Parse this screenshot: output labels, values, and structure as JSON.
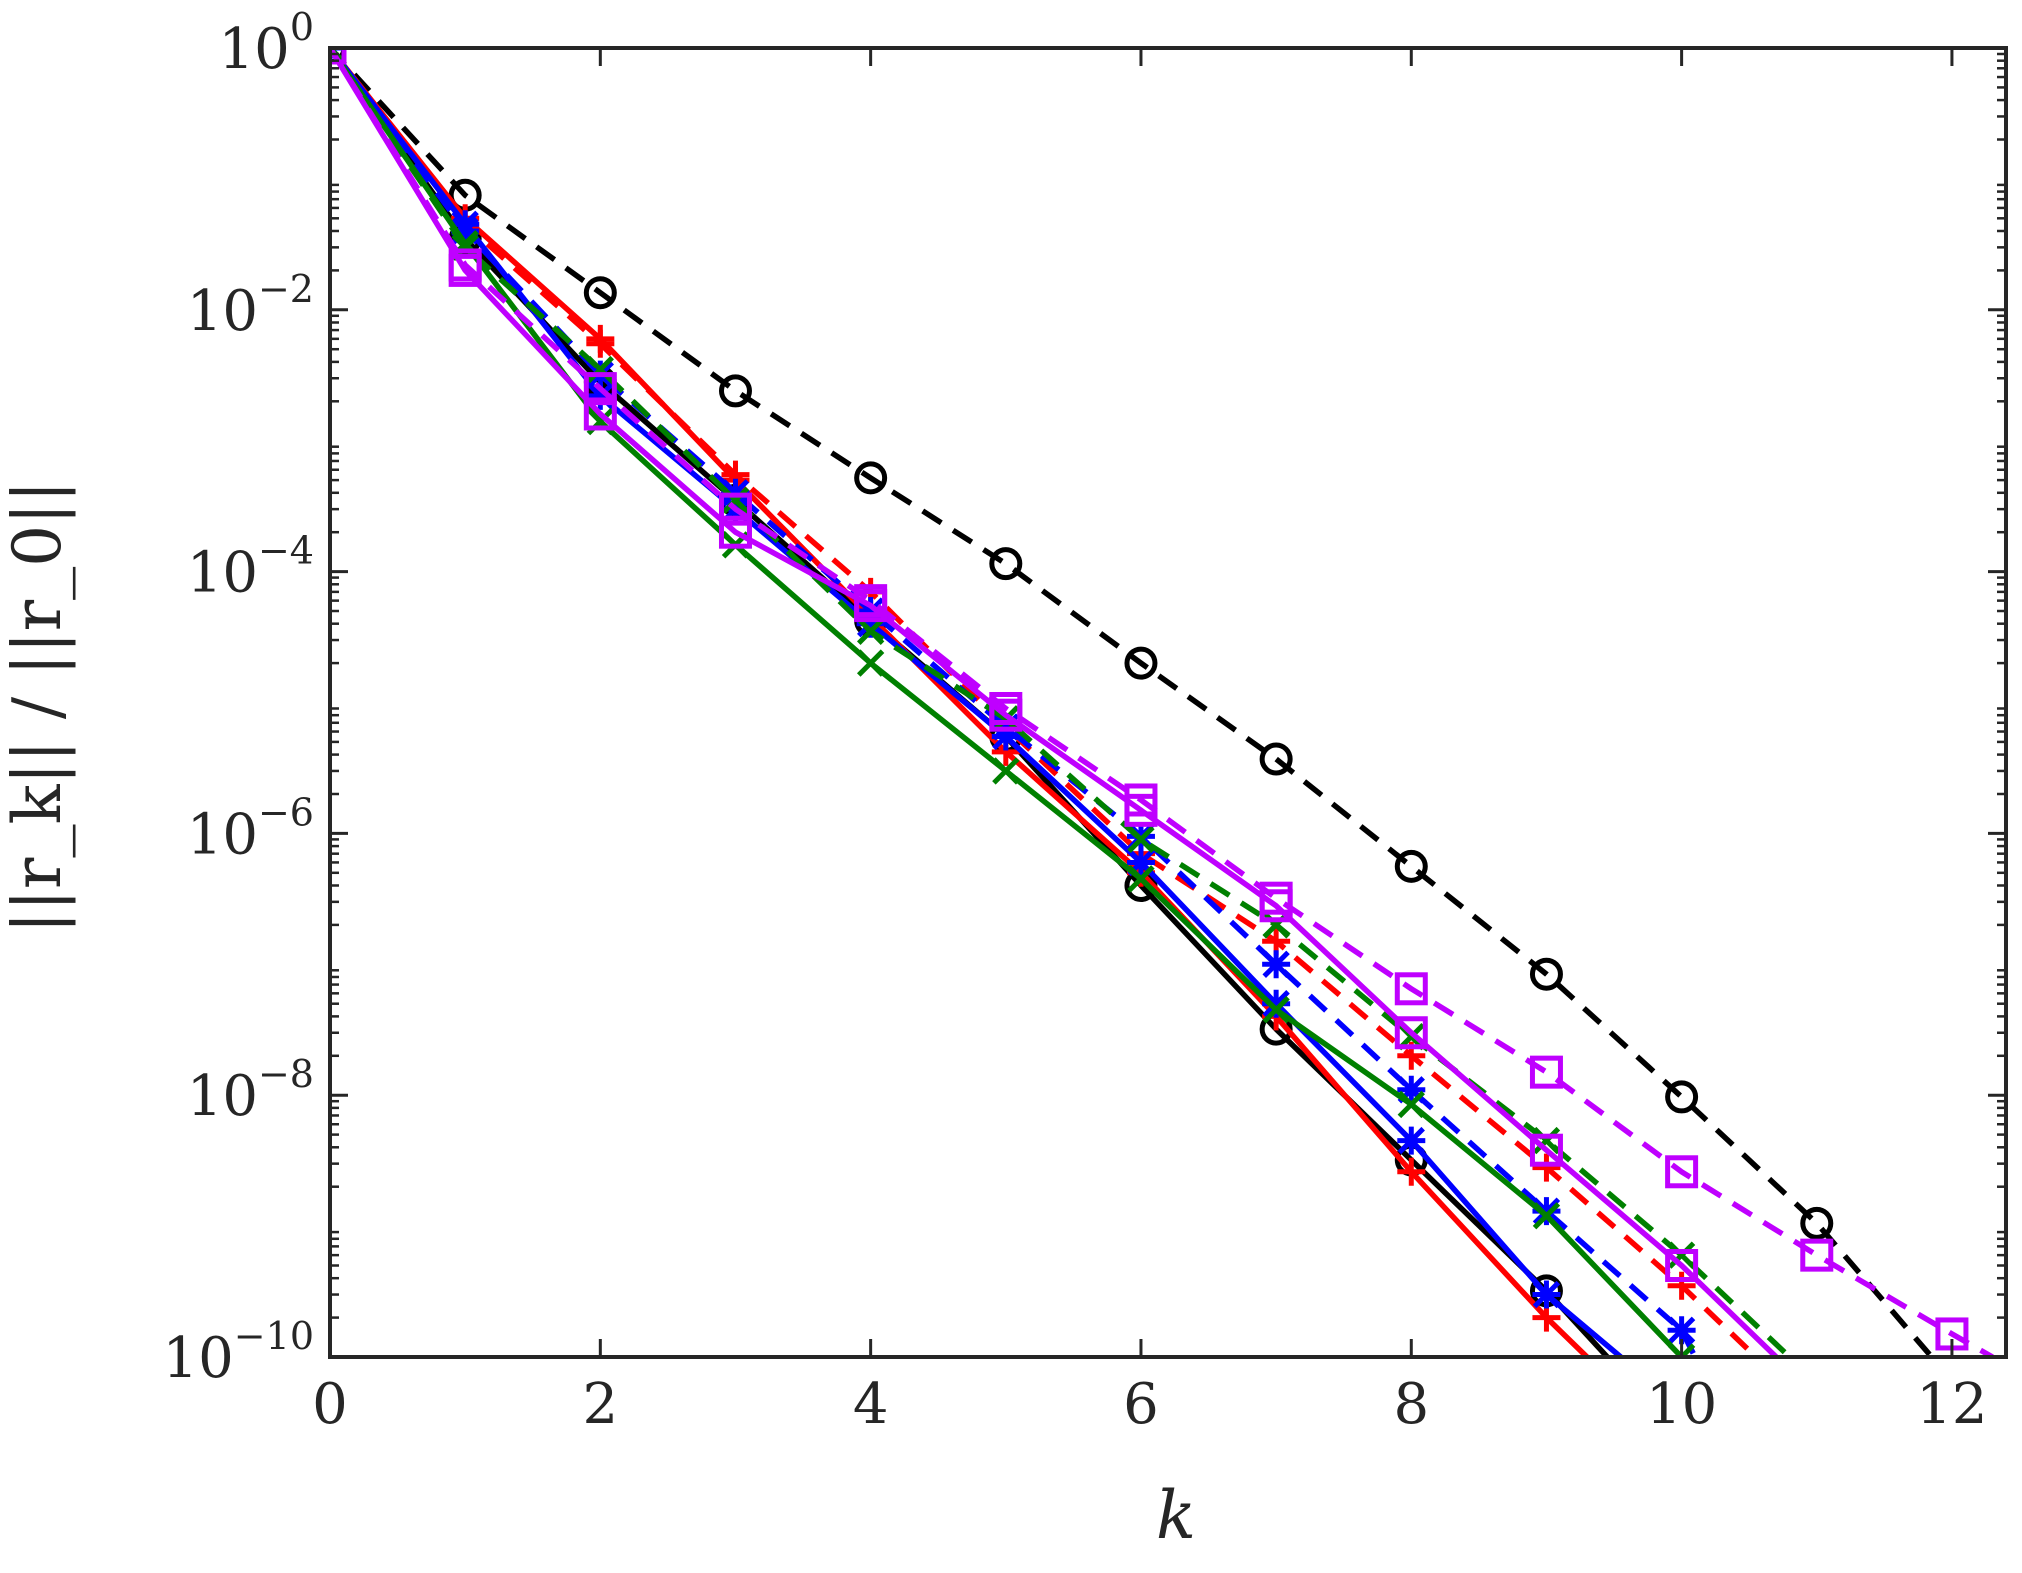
{
  "chart_data": {
    "type": "line",
    "xlabel": "k",
    "ylabel": "||r_k|| / ||r_0||",
    "yscale": "log",
    "xlim": [
      0,
      12.4
    ],
    "ylim": [
      1e-10,
      1
    ],
    "grid": false,
    "legend": "none",
    "x_ticks": [
      {
        "value": 0,
        "label": "0"
      },
      {
        "value": 2,
        "label": "2"
      },
      {
        "value": 4,
        "label": "4"
      },
      {
        "value": 6,
        "label": "6"
      },
      {
        "value": 8,
        "label": "8"
      },
      {
        "value": 10,
        "label": "10"
      },
      {
        "value": 12,
        "label": "12"
      }
    ],
    "y_ticks": [
      {
        "value": 1,
        "base": "10",
        "exponent": "0"
      },
      {
        "value": 0.01,
        "base": "10",
        "exponent": "−2"
      },
      {
        "value": 0.0001,
        "base": "10",
        "exponent": "−4"
      },
      {
        "value": 1e-06,
        "base": "10",
        "exponent": "−6"
      },
      {
        "value": 1e-08,
        "base": "10",
        "exponent": "−8"
      },
      {
        "value": 1e-10,
        "base": "10",
        "exponent": "−10"
      }
    ],
    "series": [
      {
        "color": "#000000",
        "dash": "dashed",
        "marker": "circle",
        "x": [
          0,
          1,
          2,
          3,
          4,
          5,
          6,
          7,
          8,
          9,
          10,
          11,
          11.85
        ],
        "y": [
          1,
          0.075,
          0.0135,
          0.0024,
          0.00052,
          0.000115,
          2e-05,
          3.7e-06,
          5.6e-07,
          8.4e-08,
          9.7e-09,
          1.05e-09,
          1e-10
        ]
      },
      {
        "color": "#000000",
        "dash": "solid",
        "marker": "circle",
        "x": [
          0,
          1,
          2,
          3,
          4,
          5,
          6,
          7,
          8,
          9,
          9.45
        ],
        "y": [
          1,
          0.035,
          0.0028,
          0.00035,
          4.2e-05,
          5.5e-06,
          4e-07,
          3.2e-08,
          3.2e-09,
          3.2e-10,
          1e-10
        ]
      },
      {
        "color": "#ff0000",
        "dash": "solid",
        "marker": "plus",
        "x": [
          0,
          1,
          2,
          3,
          4,
          5,
          6,
          7,
          8,
          9,
          9.3
        ],
        "y": [
          1,
          0.05,
          0.006,
          0.0005,
          4.5e-05,
          4.2e-06,
          5e-07,
          4e-08,
          2.6e-09,
          2e-10,
          1e-10
        ]
      },
      {
        "color": "#ff0000",
        "dash": "dashed",
        "marker": "plus",
        "x": [
          0,
          1,
          2,
          3,
          4,
          5,
          6,
          7,
          8,
          9,
          10,
          10.55
        ],
        "y": [
          1,
          0.045,
          0.0055,
          0.00055,
          7e-05,
          6.5e-06,
          7e-07,
          1.5e-07,
          2e-08,
          2.8e-09,
          3.5e-10,
          1e-10
        ]
      },
      {
        "color": "#0000ff",
        "dash": "solid",
        "marker": "asterisk",
        "x": [
          0,
          1,
          2,
          3,
          4,
          5,
          6,
          7,
          8,
          9,
          9.55
        ],
        "y": [
          1,
          0.045,
          0.0022,
          0.0003,
          4e-05,
          5.5e-06,
          6e-07,
          5e-08,
          4.5e-09,
          3e-10,
          1e-10
        ]
      },
      {
        "color": "#0000ff",
        "dash": "dashed",
        "marker": "asterisk",
        "x": [
          0,
          1,
          2,
          3,
          4,
          5,
          6,
          7,
          8,
          9,
          10,
          10.1
        ],
        "y": [
          1,
          0.04,
          0.0032,
          0.0004,
          5e-05,
          6.5e-06,
          9.5e-07,
          1e-07,
          1.1e-08,
          1.3e-09,
          1.6e-10,
          1e-10
        ]
      },
      {
        "color": "#008000",
        "dash": "solid",
        "marker": "x",
        "x": [
          0,
          1,
          2,
          3,
          4,
          5,
          6,
          7,
          8,
          9,
          10
        ],
        "y": [
          1,
          0.032,
          0.0014,
          0.00016,
          2e-05,
          3e-06,
          4.5e-07,
          4.5e-08,
          8.5e-09,
          1.2e-09,
          1e-10
        ]
      },
      {
        "color": "#008000",
        "dash": "dashed",
        "marker": "x",
        "x": [
          0,
          1,
          2,
          3,
          4,
          5,
          6,
          7,
          8,
          9,
          10,
          10.8
        ],
        "y": [
          1,
          0.03,
          0.0035,
          0.00035,
          3.5e-05,
          7.5e-06,
          9e-07,
          2e-07,
          2.8e-08,
          4.5e-09,
          6e-10,
          1e-10
        ]
      },
      {
        "color": "#bf00ff",
        "dash": "solid",
        "marker": "square",
        "x": [
          0,
          1,
          2,
          3,
          4,
          5,
          6,
          7,
          8,
          9,
          10,
          10.7
        ],
        "y": [
          1,
          0.02,
          0.0016,
          0.0002,
          5.5e-05,
          8e-06,
          1.5e-06,
          2.8e-07,
          3e-08,
          3.8e-09,
          5e-10,
          1e-10
        ]
      },
      {
        "color": "#bf00ff",
        "dash": "dashed",
        "marker": "square",
        "x": [
          0,
          1,
          2,
          3,
          4,
          5,
          6,
          7,
          8,
          9,
          10,
          11,
          12,
          12.3
        ],
        "y": [
          1,
          0.022,
          0.0025,
          0.0003,
          6e-05,
          9e-06,
          1.8e-06,
          3.2e-07,
          6.5e-08,
          1.5e-08,
          2.6e-09,
          6e-10,
          1.5e-10,
          1e-10
        ]
      }
    ]
  }
}
